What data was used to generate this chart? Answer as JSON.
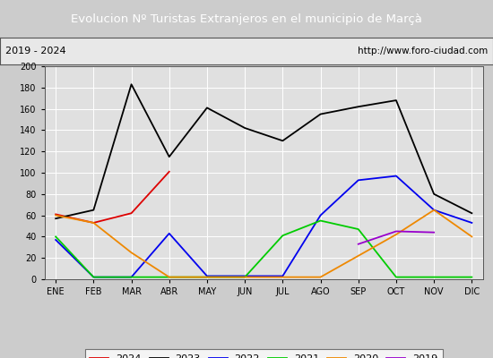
{
  "title": "Evolucion Nº Turistas Extranjeros en el municipio de Marçà",
  "subtitle_left": "2019 - 2024",
  "subtitle_right": "http://www.foro-ciudad.com",
  "title_bg": "#4d7ebf",
  "title_color": "white",
  "subtitle_bg": "#e8e8e8",
  "subtitle_color": "black",
  "months": [
    "ENE",
    "FEB",
    "MAR",
    "ABR",
    "MAY",
    "JUN",
    "JUL",
    "AGO",
    "SEP",
    "OCT",
    "NOV",
    "DIC"
  ],
  "ylim": [
    0,
    200
  ],
  "yticks": [
    0,
    20,
    40,
    60,
    80,
    100,
    120,
    140,
    160,
    180,
    200
  ],
  "series": {
    "2024": {
      "color": "#dd0000",
      "data": [
        61,
        53,
        62,
        101,
        null,
        null,
        null,
        null,
        null,
        null,
        null,
        null
      ]
    },
    "2023": {
      "color": "#000000",
      "data": [
        57,
        65,
        183,
        115,
        161,
        142,
        130,
        155,
        162,
        168,
        80,
        62
      ]
    },
    "2022": {
      "color": "#0000ee",
      "data": [
        37,
        2,
        2,
        43,
        3,
        3,
        3,
        60,
        93,
        97,
        65,
        53
      ]
    },
    "2021": {
      "color": "#00cc00",
      "data": [
        40,
        2,
        2,
        2,
        2,
        2,
        41,
        55,
        47,
        2,
        2,
        2
      ]
    },
    "2020": {
      "color": "#ee8800",
      "data": [
        60,
        53,
        25,
        2,
        2,
        2,
        2,
        2,
        22,
        42,
        65,
        40
      ]
    },
    "2019": {
      "color": "#9900cc",
      "data": [
        null,
        null,
        null,
        null,
        null,
        null,
        null,
        null,
        33,
        45,
        44,
        null
      ]
    }
  },
  "legend_order": [
    "2024",
    "2023",
    "2022",
    "2021",
    "2020",
    "2019"
  ],
  "bg_color": "#cccccc",
  "plot_bg": "#e0e0e0",
  "grid_color": "#ffffff"
}
